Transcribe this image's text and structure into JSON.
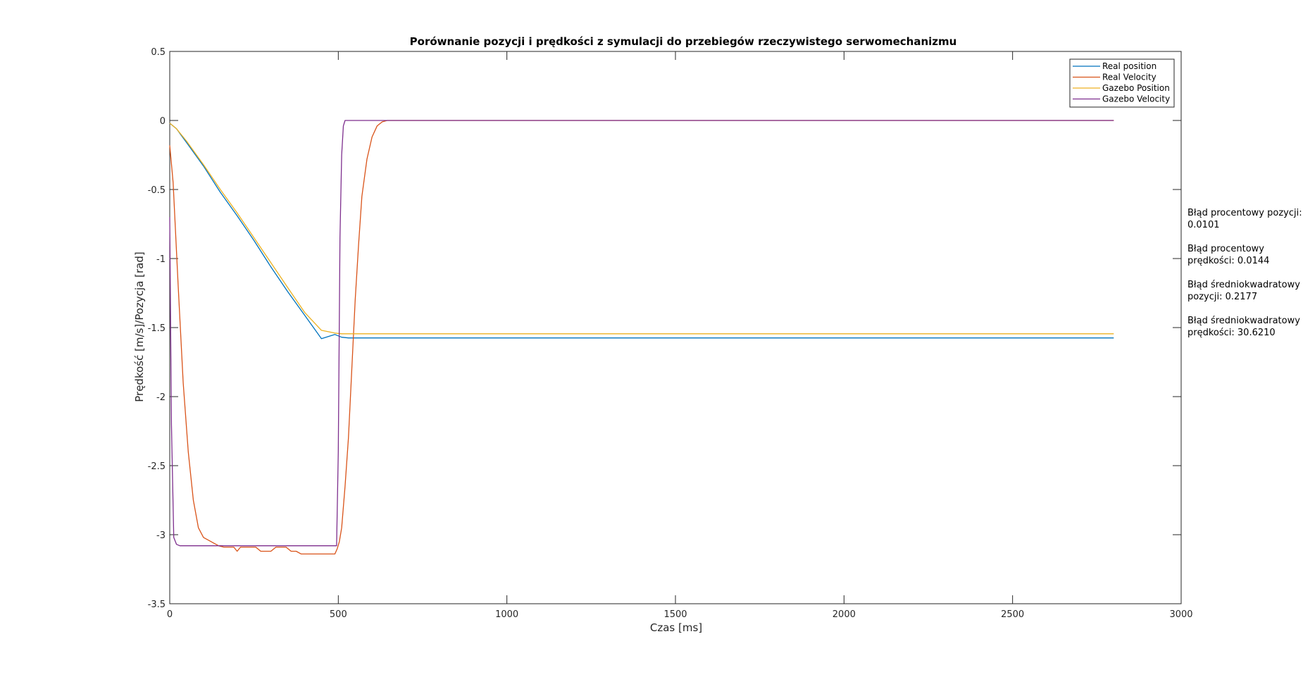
{
  "chart_data": {
    "type": "line",
    "title": "Porównanie pozycji i prędkości z symulacji do przebiegów rzeczywistego serwomechanizmu",
    "xlabel": "Czas [ms]",
    "ylabel": "Prędkość [m/s]/Pozycja [rad]",
    "xlim": [
      0,
      3000
    ],
    "ylim": [
      -3.5,
      0.5
    ],
    "xticks": [
      0,
      500,
      1000,
      1500,
      2000,
      2500,
      3000
    ],
    "xtick_labels": [
      "0",
      "500",
      "1000",
      "1500",
      "2000",
      "2500",
      "3000"
    ],
    "yticks": [
      -3.5,
      -3,
      -2.5,
      -2,
      -1.5,
      -1,
      -0.5,
      0,
      0.5
    ],
    "ytick_labels": [
      "-3.5",
      "-3",
      "-2.5",
      "-2",
      "-1.5",
      "-1",
      "-0.5",
      "0",
      "0.5"
    ],
    "grid": false,
    "legend_position": "top-right",
    "series": [
      {
        "name": "Real position",
        "color": "#0072BD",
        "x": [
          0,
          20,
          50,
          100,
          150,
          200,
          250,
          300,
          350,
          400,
          450,
          490,
          510,
          530,
          560,
          600,
          800,
          1200,
          2000,
          2800
        ],
        "y": [
          -0.02,
          -0.06,
          -0.16,
          -0.33,
          -0.52,
          -0.69,
          -0.87,
          -1.06,
          -1.24,
          -1.41,
          -1.58,
          -1.55,
          -1.57,
          -1.575,
          -1.575,
          -1.575,
          -1.575,
          -1.575,
          -1.575,
          -1.575
        ]
      },
      {
        "name": "Real Velocity",
        "color": "#D95319",
        "x": [
          0,
          10,
          25,
          40,
          55,
          70,
          85,
          100,
          115,
          130,
          145,
          160,
          175,
          190,
          200,
          210,
          225,
          240,
          255,
          270,
          285,
          300,
          315,
          330,
          345,
          360,
          375,
          390,
          410,
          430,
          460,
          490,
          497,
          503,
          510,
          520,
          530,
          540,
          550,
          560,
          570,
          585,
          600,
          615,
          630,
          645,
          800,
          1500,
          2800
        ],
        "y": [
          -0.18,
          -0.45,
          -1.2,
          -1.9,
          -2.4,
          -2.75,
          -2.95,
          -3.02,
          -3.04,
          -3.06,
          -3.08,
          -3.09,
          -3.09,
          -3.09,
          -3.12,
          -3.09,
          -3.09,
          -3.09,
          -3.09,
          -3.12,
          -3.12,
          -3.12,
          -3.09,
          -3.09,
          -3.09,
          -3.12,
          -3.12,
          -3.14,
          -3.14,
          -3.14,
          -3.14,
          -3.14,
          -3.1,
          -3.05,
          -2.95,
          -2.65,
          -2.3,
          -1.8,
          -1.3,
          -0.9,
          -0.55,
          -0.28,
          -0.12,
          -0.04,
          -0.01,
          0,
          0,
          0,
          0
        ]
      },
      {
        "name": "Gazebo Position",
        "color": "#EDB120",
        "x": [
          0,
          20,
          50,
          100,
          150,
          200,
          250,
          300,
          350,
          400,
          450,
          490,
          510,
          530,
          560,
          600,
          800,
          1200,
          2000,
          2800
        ],
        "y": [
          -0.02,
          -0.06,
          -0.15,
          -0.32,
          -0.5,
          -0.67,
          -0.85,
          -1.03,
          -1.21,
          -1.39,
          -1.52,
          -1.54,
          -1.545,
          -1.545,
          -1.545,
          -1.545,
          -1.545,
          -1.545,
          -1.545,
          -1.545
        ]
      },
      {
        "name": "Gazebo Velocity",
        "color": "#7E2F8E",
        "x": [
          0,
          5,
          12,
          20,
          30,
          50,
          100,
          200,
          300,
          400,
          480,
          495,
          500,
          505,
          510,
          515,
          520,
          530,
          600,
          1000,
          2000,
          2800
        ],
        "y": [
          -0.7,
          -2.2,
          -3.02,
          -3.07,
          -3.08,
          -3.08,
          -3.08,
          -3.08,
          -3.08,
          -3.08,
          -3.08,
          -3.08,
          -2.4,
          -0.85,
          -0.25,
          -0.04,
          0,
          0,
          0,
          0,
          0,
          0
        ]
      }
    ]
  },
  "annotations": [
    "Błąd procentowy pozycji:",
    "0.0101",
    "Błąd procentowy",
    "prędkości: 0.0144",
    "Błąd średniokwadratowy",
    "pozycji: 0.2177",
    "Błąd średniokwadratowy",
    "prędkości: 30.6210"
  ],
  "colors": {
    "axis": "#262626",
    "background": "#ffffff"
  }
}
